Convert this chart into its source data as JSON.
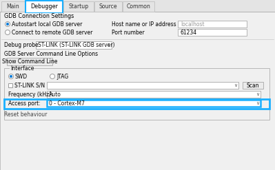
{
  "bg_color": "#e4e4e4",
  "content_bg": "#f0f0f0",
  "white": "#ffffff",
  "tab_border_highlight": "#1aafff",
  "border_color": "#b0b0b0",
  "radio_fill": "#0078d7",
  "highlight_border": "#1aafff",
  "tabs": [
    "Main",
    "Debugger",
    "Startup",
    "Source",
    "Common"
  ],
  "active_tab": 1,
  "tab_widths": [
    34,
    54,
    44,
    40,
    46
  ],
  "section_gdb": "GDB Connection Settings",
  "radio1": "Autostart local GDB server",
  "radio2": "Connect to remote GDB server",
  "label_host": "Host name or IP address",
  "host_val": "localhost",
  "label_port": "Port number",
  "port_val": "61234",
  "label_probe": "Debug probe",
  "probe_val": "ST-LINK (ST-LINK GDB server)",
  "section_gdb_options": "GDB Server Command Line Options",
  "btn_show": "Show Command Line",
  "section_interface": "Interface",
  "radio_swd": "SWD",
  "radio_jtag": "JTAG",
  "check_stlink": "ST-LINK S/N",
  "label_freq": "Frequency (kHz):",
  "freq_val": "Auto",
  "label_access": "Access port:",
  "access_val": "0 - Cortex-M7",
  "label_reset": "Reset behaviour",
  "scan_btn": "Scan"
}
